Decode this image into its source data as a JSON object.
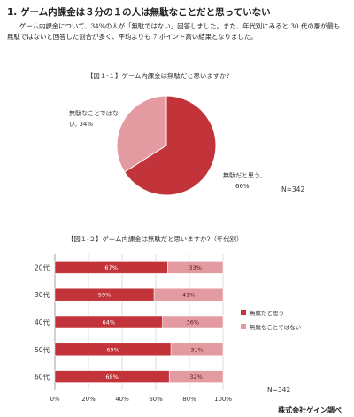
{
  "heading": "1. ゲーム内課金は３分の１の人は無駄なことだと思っていない",
  "paragraph": "ゲーム内課金について、34%の人が「無駄ではない」回答しました。また、年代別にみると 30 代の層が最も無駄ではないと回答した割合が多く、平均よりも 7 ポイント高い結果となりました。",
  "colors": {
    "yes": "#c3333a",
    "no": "#e39aa0"
  },
  "chart_data": [
    {
      "type": "pie",
      "title": "【図１-１】ゲーム内課金は無駄だと思いますか?",
      "slices": [
        {
          "label": "無駄だと思う,",
          "pct_label": "66%",
          "value": 66
        },
        {
          "label": "無駄なことではな",
          "label2": "い, 34%",
          "value": 34
        }
      ],
      "note": "N=342"
    },
    {
      "type": "bar",
      "title": "【図１-２】ゲーム内課金は無駄だと思いますか?（年代別）",
      "categories": [
        "20代",
        "30代",
        "40代",
        "50代",
        "60代"
      ],
      "series": [
        {
          "name": "無駄だと思う",
          "values": [
            67,
            59,
            64,
            69,
            68
          ]
        },
        {
          "name": "無駄なことではない",
          "values": [
            33,
            41,
            36,
            31,
            32
          ]
        }
      ],
      "xticks": [
        "0%",
        "20%",
        "40%",
        "60%",
        "80%",
        "100%"
      ],
      "xlim": [
        0,
        100
      ],
      "grid": true,
      "legend": "right",
      "note": "N=342"
    }
  ],
  "footer": "株式会社ゲイン調べ"
}
